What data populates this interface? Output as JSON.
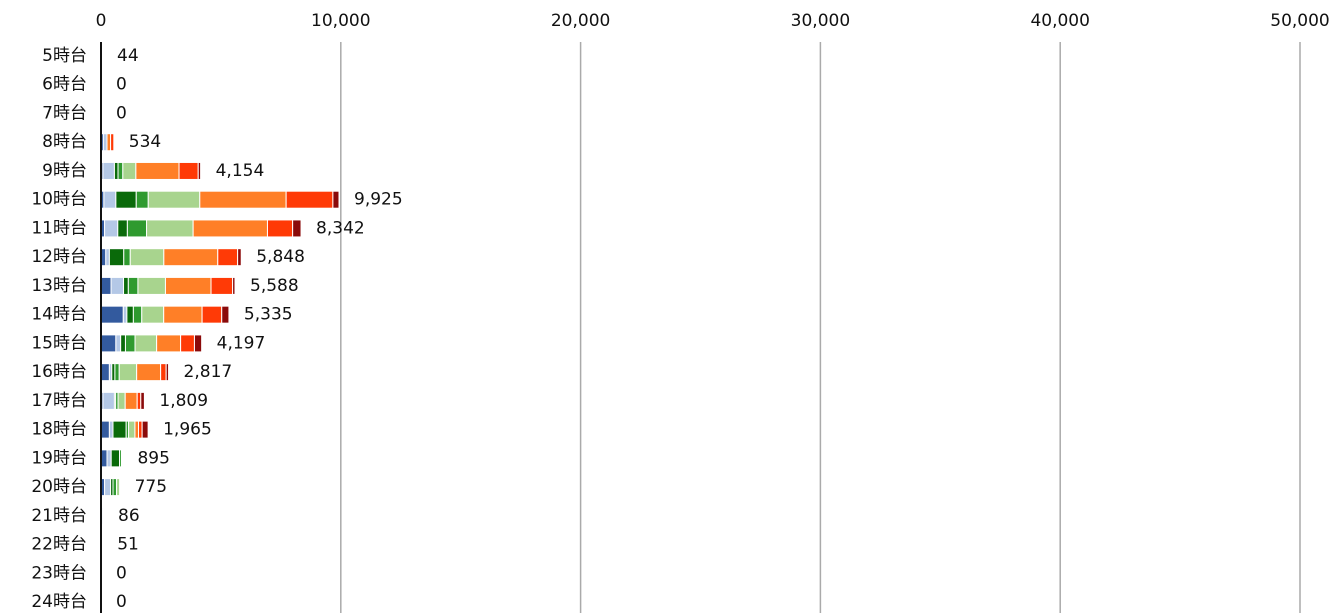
{
  "chart_data": {
    "type": "stacked-bar-horizontal",
    "categories": [
      "5時台",
      "6時台",
      "7時台",
      "8時台",
      "9時台",
      "10時台",
      "11時台",
      "12時台",
      "13時台",
      "14時台",
      "15時台",
      "16時台",
      "17時台",
      "18時台",
      "19時台",
      "20時台",
      "21時台",
      "22時台",
      "23時台",
      "24時台"
    ],
    "series": [
      {
        "color": "#335a9e",
        "values": [
          0,
          0,
          0,
          100,
          80,
          120,
          150,
          200,
          420,
          930,
          620,
          350,
          80,
          350,
          250,
          150,
          40,
          51,
          0,
          0
        ]
      },
      {
        "color": "#b4c8e6",
        "values": [
          44,
          0,
          0,
          150,
          480,
          500,
          550,
          150,
          520,
          150,
          200,
          100,
          480,
          150,
          175,
          250,
          46,
          0,
          0,
          0
        ]
      },
      {
        "color": "#0a6a0a",
        "values": [
          0,
          0,
          0,
          0,
          150,
          850,
          400,
          600,
          200,
          270,
          200,
          130,
          50,
          550,
          350,
          100,
          0,
          0,
          0,
          0
        ]
      },
      {
        "color": "#2f9a2f",
        "values": [
          0,
          0,
          0,
          0,
          200,
          500,
          800,
          270,
          400,
          350,
          400,
          180,
          100,
          100,
          80,
          150,
          0,
          0,
          0,
          0
        ]
      },
      {
        "color": "#a8d48e",
        "values": [
          0,
          0,
          0,
          0,
          544,
          2150,
          1942,
          1400,
          1148,
          915,
          900,
          727,
          299,
          265,
          40,
          125,
          0,
          0,
          0,
          0
        ]
      },
      {
        "color": "#ff7f27",
        "values": [
          0,
          0,
          0,
          150,
          1800,
          3600,
          3100,
          2250,
          1900,
          1600,
          1000,
          1000,
          500,
          150,
          0,
          0,
          0,
          0,
          0,
          0
        ]
      },
      {
        "color": "#ff3a06",
        "values": [
          0,
          0,
          0,
          134,
          800,
          1950,
          1050,
          828,
          900,
          820,
          577,
          230,
          150,
          150,
          0,
          0,
          0,
          0,
          0,
          0
        ]
      },
      {
        "color": "#8b0a0a",
        "values": [
          0,
          0,
          0,
          0,
          100,
          255,
          350,
          150,
          100,
          300,
          300,
          100,
          150,
          250,
          0,
          0,
          0,
          0,
          0,
          0
        ]
      }
    ],
    "totals": [
      44,
      0,
      0,
      534,
      4154,
      9925,
      8342,
      5848,
      5588,
      5335,
      4197,
      2817,
      1809,
      1965,
      895,
      775,
      86,
      51,
      0,
      0
    ],
    "total_labels": [
      "44",
      "0",
      "0",
      "534",
      "4,154",
      "9,925",
      "8,342",
      "5,848",
      "5,588",
      "5,335",
      "4,197",
      "2,817",
      "1,809",
      "1,965",
      "895",
      "775",
      "86",
      "51",
      "0",
      "0"
    ],
    "xlim": [
      0,
      50000
    ],
    "xticks": [
      0,
      {
        "value": 10000,
        "label": "10,000"
      },
      {
        "value": 20000,
        "label": "20,000"
      },
      {
        "value": 30000,
        "label": "30,000"
      },
      {
        "value": 40000,
        "label": "40,000"
      },
      {
        "value": 50000,
        "label": "50,000"
      }
    ],
    "grid": true
  }
}
